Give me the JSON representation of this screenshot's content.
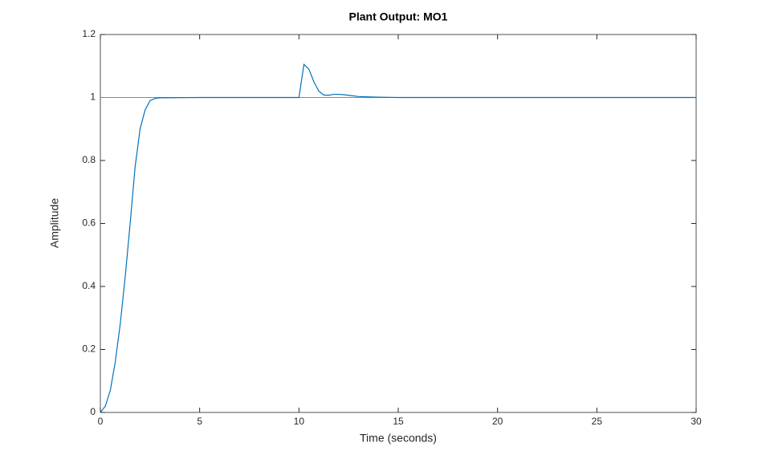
{
  "chart_data": {
    "type": "line",
    "title": "Plant Output: MO1",
    "xlabel": "Time (seconds)",
    "ylabel": "Amplitude",
    "x": [
      0,
      0.25,
      0.5,
      0.75,
      1.0,
      1.25,
      1.5,
      1.75,
      2.0,
      2.25,
      2.5,
      2.75,
      3.0,
      5,
      10,
      10.25,
      10.5,
      10.75,
      11,
      11.25,
      11.5,
      11.75,
      12,
      12.25,
      12.5,
      13,
      13.5,
      14,
      15,
      30
    ],
    "values": [
      0,
      0.02,
      0.07,
      0.16,
      0.28,
      0.43,
      0.6,
      0.78,
      0.9,
      0.96,
      0.99,
      0.997,
      0.999,
      1,
      1,
      1.105,
      1.09,
      1.05,
      1.02,
      1.008,
      1.007,
      1.01,
      1.01,
      1.009,
      1.007,
      1.003,
      1.002,
      1.001,
      1,
      1
    ],
    "color": "#0072bd",
    "reference_y": 1,
    "reference_color": "#a08070",
    "xlim": [
      0,
      30
    ],
    "xticks": [
      0,
      5,
      10,
      15,
      20,
      25,
      30
    ],
    "ylim": [
      0,
      1.2
    ],
    "yticks": [
      0,
      0.2,
      0.4,
      0.6,
      0.8,
      1,
      1.2
    ]
  }
}
